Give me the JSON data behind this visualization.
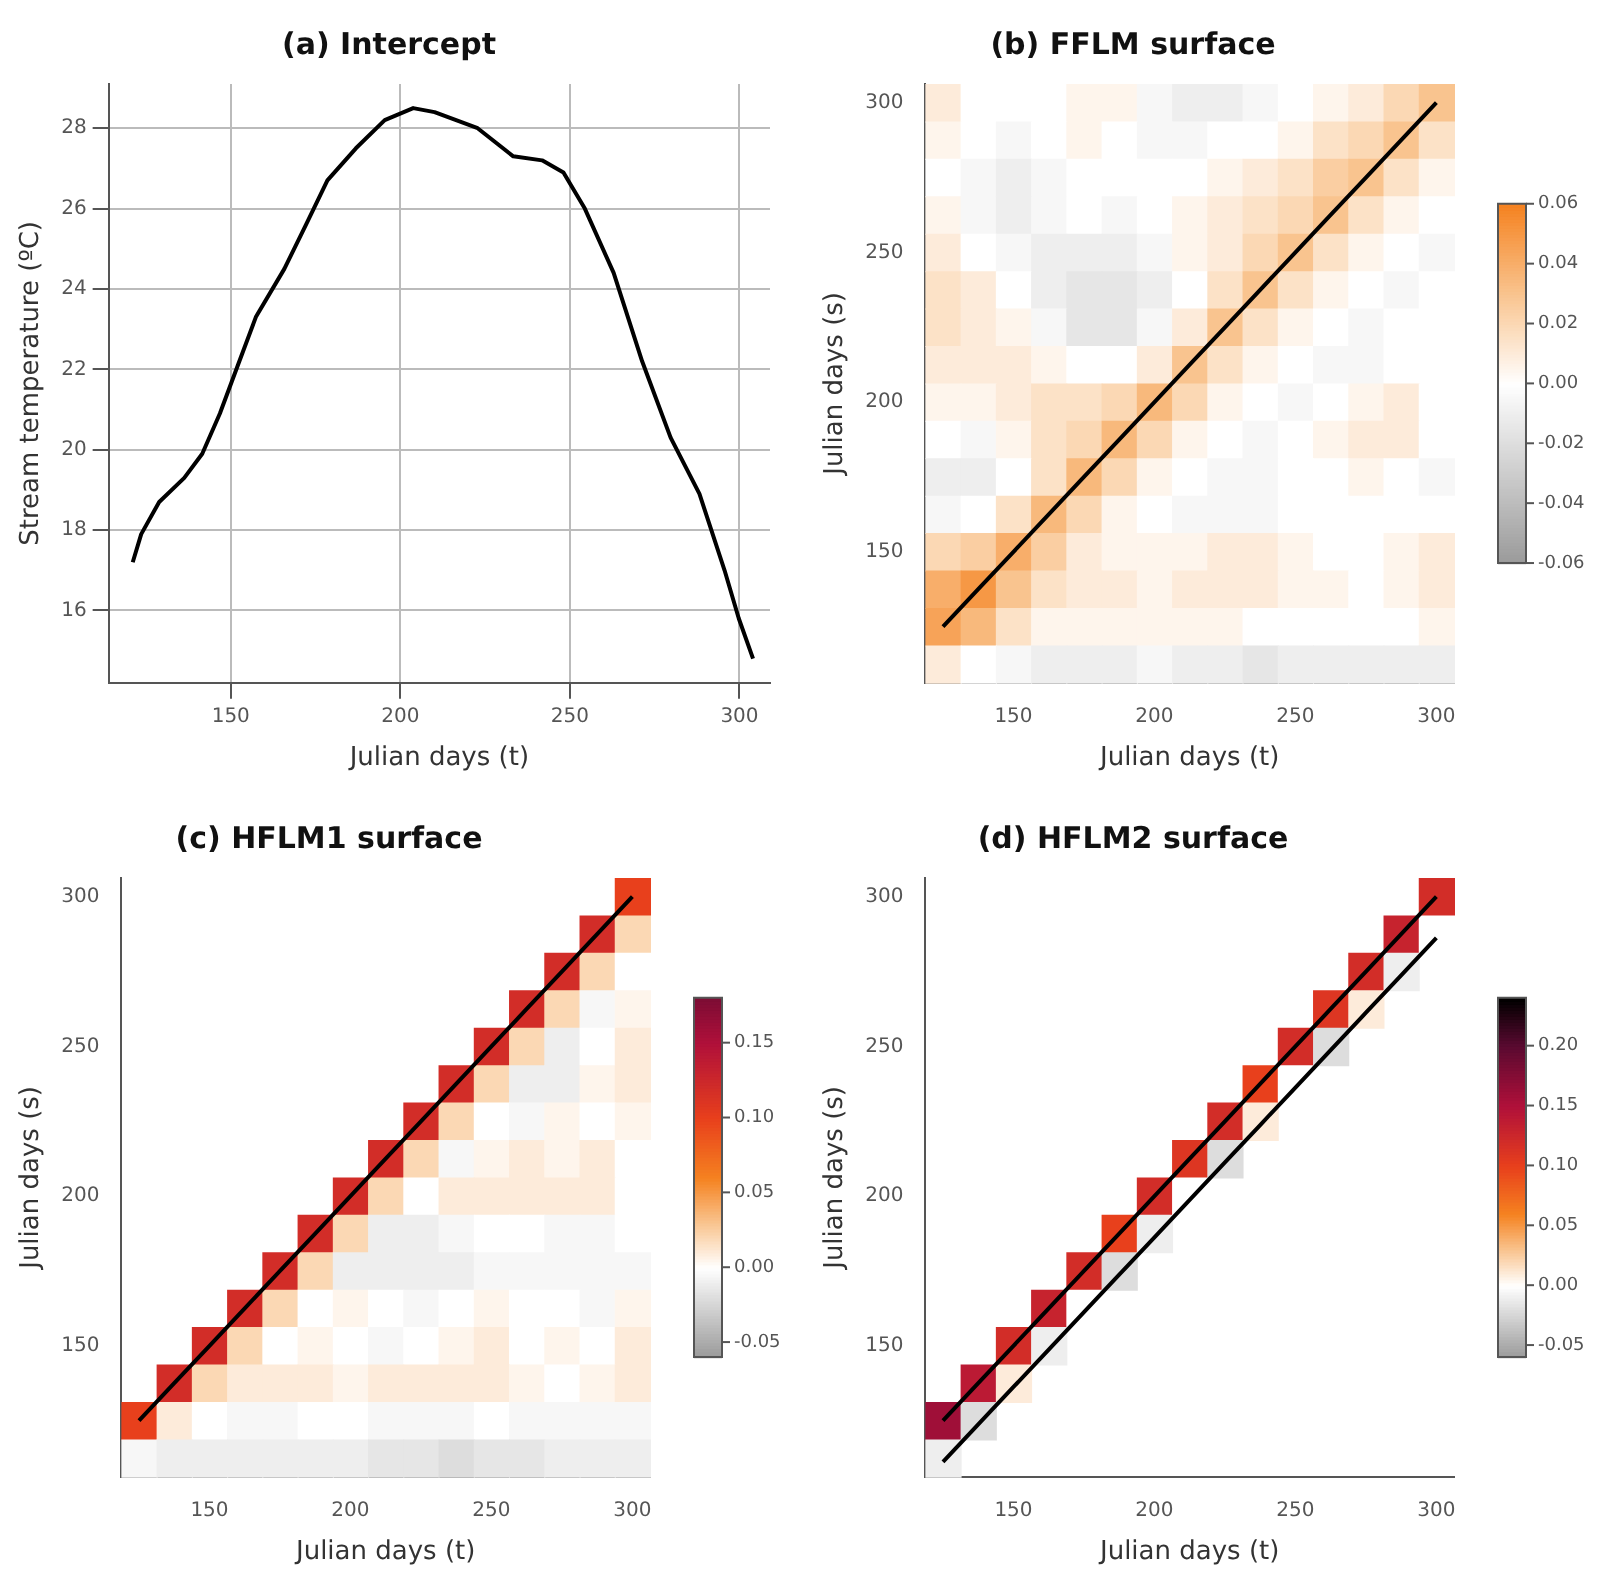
{
  "chart_data": [
    {
      "type": "line",
      "title": "(a) Intercept",
      "xlabel": "Julian days (t)",
      "ylabel": "Stream temperature (ºC)",
      "x": [
        121.1,
        123.6,
        128.9,
        136.3,
        141.6,
        146.8,
        152.1,
        157.4,
        165.8,
        172.2,
        178.5,
        186.9,
        195.4,
        203.8,
        210.1,
        222.8,
        233.3,
        241.8,
        248.1,
        254.4,
        262.9,
        271.3,
        279.7,
        288.2,
        295.6,
        299.8,
        304.0
      ],
      "values": [
        17.2,
        17.9,
        18.7,
        19.3,
        19.9,
        20.9,
        22.1,
        23.3,
        24.5,
        25.6,
        26.7,
        27.5,
        28.2,
        28.5,
        28.4,
        28.0,
        27.3,
        27.2,
        26.9,
        26.0,
        24.4,
        22.2,
        20.3,
        18.9,
        17.0,
        15.8,
        14.8
      ],
      "color": "#000000",
      "xlim": [
        114,
        309
      ],
      "ylim": [
        14.2,
        29.1
      ],
      "xticks": [
        150,
        200,
        250,
        300
      ],
      "yticks": [
        16,
        18,
        20,
        22,
        24,
        26,
        28
      ],
      "grid": true
    },
    {
      "type": "heatmap",
      "title": "(b) FFLM surface",
      "xlabel": "Julian days (t)",
      "ylabel": "Julian days (s)",
      "categories": [
        null,
        null,
        "150",
        null,
        null,
        null,
        "200",
        null,
        null,
        null,
        "250",
        null,
        null,
        null,
        "300"
      ],
      "y_categories": [
        "300",
        null,
        null,
        null,
        "250",
        null,
        null,
        null,
        "200",
        null,
        null,
        null,
        "150",
        null,
        null,
        null
      ],
      "cells": [
        [
          0.01,
          0,
          0,
          0,
          0.005,
          0.005,
          -0.005,
          -0.01,
          -0.01,
          -0.005,
          0,
          0.005,
          0.01,
          0.02,
          0.03
        ],
        [
          0.005,
          0,
          -0.005,
          0,
          0.005,
          0,
          -0.005,
          -0.005,
          0,
          0,
          0.005,
          0.015,
          0.02,
          0.03,
          0.015
        ],
        [
          0,
          -0.005,
          -0.01,
          -0.005,
          0,
          0,
          0,
          0,
          0.005,
          0.01,
          0.015,
          0.025,
          0.03,
          0.015,
          0.005
        ],
        [
          0.005,
          -0.005,
          -0.01,
          -0.005,
          0,
          -0.005,
          0,
          0.005,
          0.01,
          0.015,
          0.02,
          0.03,
          0.015,
          0.005,
          0
        ],
        [
          0.01,
          0,
          -0.005,
          -0.01,
          -0.01,
          -0.01,
          -0.005,
          0.005,
          0.01,
          0.02,
          0.03,
          0.015,
          0.005,
          0,
          -0.005
        ],
        [
          0.015,
          0.01,
          0,
          -0.01,
          -0.015,
          -0.015,
          -0.01,
          0,
          0.015,
          0.03,
          0.015,
          0.005,
          0,
          -0.005,
          0
        ],
        [
          0.015,
          0.01,
          0.005,
          -0.005,
          -0.015,
          -0.015,
          -0.005,
          0.01,
          0.03,
          0.015,
          0.005,
          0,
          -0.005,
          0,
          0
        ],
        [
          0.01,
          0.01,
          0.01,
          0.005,
          0,
          0,
          0.01,
          0.03,
          0.015,
          0.005,
          0,
          -0.005,
          -0.005,
          0,
          0
        ],
        [
          0.005,
          0.005,
          0.01,
          0.015,
          0.015,
          0.02,
          0.035,
          0.02,
          0.005,
          0,
          -0.005,
          0,
          0.005,
          0.01,
          0
        ],
        [
          0,
          -0.005,
          0.005,
          0.015,
          0.02,
          0.035,
          0.02,
          0.005,
          0,
          -0.005,
          0,
          0.005,
          0.01,
          0.01,
          0
        ],
        [
          -0.01,
          -0.01,
          0,
          0.015,
          0.035,
          0.02,
          0.005,
          0,
          -0.005,
          -0.005,
          0,
          0,
          0.005,
          0,
          -0.005
        ],
        [
          -0.005,
          0,
          0.015,
          0.035,
          0.02,
          0.005,
          0,
          -0.005,
          -0.005,
          -0.005,
          0,
          0,
          0,
          0,
          0
        ],
        [
          0.02,
          0.025,
          0.04,
          0.025,
          0.01,
          0.005,
          0.005,
          0.005,
          0.01,
          0.01,
          0.005,
          0,
          0,
          0.005,
          0.01
        ],
        [
          0.04,
          0.05,
          0.03,
          0.015,
          0.01,
          0.01,
          0.005,
          0.01,
          0.01,
          0.01,
          0.005,
          0.005,
          0,
          0.005,
          0.01
        ],
        [
          0.045,
          0.035,
          0.015,
          0.005,
          0.005,
          0.005,
          0.005,
          0.005,
          0.005,
          0,
          0,
          0,
          0,
          0,
          0.005
        ],
        [
          0.01,
          0,
          -0.005,
          -0.01,
          -0.01,
          -0.01,
          -0.005,
          -0.01,
          -0.01,
          -0.015,
          -0.01,
          -0.01,
          -0.01,
          -0.01,
          -0.01
        ]
      ],
      "clim": [
        -0.06,
        0.06
      ],
      "cticks": [
        {
          "value": -0.06,
          "label": "-0.06"
        },
        {
          "value": -0.04,
          "label": "-0.04"
        },
        {
          "value": -0.02,
          "label": "-0.02"
        },
        {
          "value": 0,
          "label": "0.00"
        },
        {
          "value": 0.02,
          "label": "0.02"
        },
        {
          "value": 0.04,
          "label": "0.04"
        },
        {
          "value": 0.06,
          "label": "0.06"
        }
      ],
      "series": [
        {
          "type": "line",
          "color": "#000000",
          "values": [
            14,
            13,
            12,
            11,
            10,
            9,
            8,
            7,
            6,
            5,
            4,
            3,
            2,
            1,
            0
          ]
        }
      ]
    },
    {
      "type": "heatmap",
      "title": "(c) HFLM1 surface",
      "xlabel": "Julian days (t)",
      "ylabel": "Julian days (s)",
      "categories": [
        null,
        null,
        "150",
        null,
        null,
        null,
        "200",
        null,
        null,
        null,
        "250",
        null,
        null,
        null,
        "300"
      ],
      "y_categories": [
        "300",
        null,
        null,
        null,
        "250",
        null,
        null,
        null,
        "200",
        null,
        null,
        null,
        "150",
        null,
        null,
        null
      ],
      "cells": [
        [
          null,
          null,
          null,
          null,
          null,
          null,
          null,
          null,
          null,
          null,
          null,
          null,
          null,
          null,
          0.1
        ],
        [
          null,
          null,
          null,
          null,
          null,
          null,
          null,
          null,
          null,
          null,
          null,
          null,
          null,
          0.12,
          0.02
        ],
        [
          null,
          null,
          null,
          null,
          null,
          null,
          null,
          null,
          null,
          null,
          null,
          null,
          0.12,
          0.02,
          0
        ],
        [
          null,
          null,
          null,
          null,
          null,
          null,
          null,
          null,
          null,
          null,
          null,
          0.12,
          0.02,
          -0.005,
          0.005
        ],
        [
          null,
          null,
          null,
          null,
          null,
          null,
          null,
          null,
          null,
          null,
          0.12,
          0.02,
          -0.01,
          0,
          0.01
        ],
        [
          null,
          null,
          null,
          null,
          null,
          null,
          null,
          null,
          null,
          0.12,
          0.02,
          -0.01,
          -0.01,
          0.005,
          0.01
        ],
        [
          null,
          null,
          null,
          null,
          null,
          null,
          null,
          null,
          0.12,
          0.02,
          0,
          -0.005,
          0.005,
          0,
          0.005
        ],
        [
          null,
          null,
          null,
          null,
          null,
          null,
          null,
          0.12,
          0.02,
          -0.005,
          0.005,
          0.01,
          0.005,
          0.01,
          0
        ],
        [
          null,
          null,
          null,
          null,
          null,
          null,
          0.12,
          0.02,
          0,
          0.01,
          0.01,
          0.01,
          0.01,
          0.01,
          0
        ],
        [
          null,
          null,
          null,
          null,
          null,
          0.12,
          0.02,
          -0.01,
          -0.01,
          -0.005,
          0,
          0,
          -0.005,
          -0.005,
          0
        ],
        [
          null,
          null,
          null,
          null,
          0.12,
          0.02,
          -0.01,
          -0.01,
          -0.01,
          -0.01,
          -0.005,
          -0.005,
          -0.005,
          -0.005,
          -0.005
        ],
        [
          null,
          null,
          null,
          0.12,
          0.02,
          0,
          0.005,
          0,
          -0.005,
          0,
          0.005,
          0,
          0,
          -0.005,
          0.005
        ],
        [
          null,
          null,
          0.12,
          0.02,
          0,
          0.005,
          0,
          -0.005,
          0,
          0.005,
          0.01,
          0,
          0.005,
          0,
          0.01
        ],
        [
          null,
          0.12,
          0.02,
          0.01,
          0.01,
          0.01,
          0.005,
          0.01,
          0.01,
          0.01,
          0.01,
          0.005,
          0,
          0.005,
          0.01
        ],
        [
          0.1,
          0.01,
          0,
          -0.005,
          -0.005,
          0,
          0,
          -0.005,
          -0.005,
          -0.005,
          0,
          -0.005,
          -0.005,
          -0.005,
          -0.005
        ],
        [
          -0.005,
          -0.01,
          -0.01,
          -0.01,
          -0.01,
          -0.01,
          -0.01,
          -0.015,
          -0.015,
          -0.02,
          -0.015,
          -0.015,
          -0.01,
          -0.01,
          -0.01
        ]
      ],
      "clim": [
        -0.06,
        0.18
      ],
      "cticks": [
        {
          "value": -0.05,
          "label": "-0.05"
        },
        {
          "value": 0,
          "label": "0.00"
        },
        {
          "value": 0.05,
          "label": "0.05"
        },
        {
          "value": 0.1,
          "label": "0.10"
        },
        {
          "value": 0.15,
          "label": "0.15"
        }
      ],
      "series": [
        {
          "type": "line",
          "color": "#000000",
          "values": [
            14,
            13,
            12,
            11,
            10,
            9,
            8,
            7,
            6,
            5,
            4,
            3,
            2,
            1,
            0
          ]
        }
      ]
    },
    {
      "type": "heatmap",
      "title": "(d) HFLM2 surface",
      "xlabel": "Julian days (t)",
      "ylabel": "Julian days (s)",
      "categories": [
        null,
        null,
        "150",
        null,
        null,
        null,
        "200",
        null,
        null,
        null,
        "250",
        null,
        null,
        null,
        "300"
      ],
      "y_categories": [
        "300",
        null,
        null,
        null,
        "250",
        null,
        null,
        null,
        "200",
        null,
        null,
        null,
        "150",
        null,
        null,
        null
      ],
      "cells": [
        [
          null,
          null,
          null,
          null,
          null,
          null,
          null,
          null,
          null,
          null,
          null,
          null,
          null,
          null,
          0.12
        ],
        [
          null,
          null,
          null,
          null,
          null,
          null,
          null,
          null,
          null,
          null,
          null,
          null,
          null,
          0.13,
          0
        ],
        [
          null,
          null,
          null,
          null,
          null,
          null,
          null,
          null,
          null,
          null,
          null,
          null,
          0.12,
          -0.01,
          null
        ],
        [
          null,
          null,
          null,
          null,
          null,
          null,
          null,
          null,
          null,
          null,
          null,
          0.11,
          0.01,
          null,
          null
        ],
        [
          null,
          null,
          null,
          null,
          null,
          null,
          null,
          null,
          null,
          null,
          0.12,
          -0.02,
          null,
          null,
          null
        ],
        [
          null,
          null,
          null,
          null,
          null,
          null,
          null,
          null,
          null,
          0.1,
          0,
          null,
          null,
          null,
          null
        ],
        [
          null,
          null,
          null,
          null,
          null,
          null,
          null,
          null,
          0.12,
          0.01,
          null,
          null,
          null,
          null,
          null
        ],
        [
          null,
          null,
          null,
          null,
          null,
          null,
          null,
          0.11,
          -0.02,
          null,
          null,
          null,
          null,
          null,
          null
        ],
        [
          null,
          null,
          null,
          null,
          null,
          null,
          0.12,
          0,
          null,
          null,
          null,
          null,
          null,
          null,
          null
        ],
        [
          null,
          null,
          null,
          null,
          null,
          0.1,
          -0.01,
          null,
          null,
          null,
          null,
          null,
          null,
          null,
          null
        ],
        [
          null,
          null,
          null,
          null,
          0.12,
          -0.02,
          null,
          null,
          null,
          null,
          null,
          null,
          null,
          null,
          null
        ],
        [
          null,
          null,
          null,
          0.13,
          0,
          null,
          null,
          null,
          null,
          null,
          null,
          null,
          null,
          null,
          null
        ],
        [
          null,
          null,
          0.12,
          -0.01,
          null,
          null,
          null,
          null,
          null,
          null,
          null,
          null,
          null,
          null,
          null
        ],
        [
          null,
          0.14,
          0.01,
          null,
          null,
          null,
          null,
          null,
          null,
          null,
          null,
          null,
          null,
          null,
          null
        ],
        [
          0.16,
          -0.02,
          null,
          null,
          null,
          null,
          null,
          null,
          null,
          null,
          null,
          null,
          null,
          null,
          null
        ],
        [
          -0.01,
          null,
          null,
          null,
          null,
          null,
          null,
          null,
          null,
          null,
          null,
          null,
          null,
          null,
          null
        ]
      ],
      "clim": [
        -0.06,
        0.24
      ],
      "cticks": [
        {
          "value": -0.05,
          "label": "-0.05"
        },
        {
          "value": 0,
          "label": "0.00"
        },
        {
          "value": 0.05,
          "label": "0.05"
        },
        {
          "value": 0.1,
          "label": "0.10"
        },
        {
          "value": 0.15,
          "label": "0.15"
        },
        {
          "value": 0.2,
          "label": "0.20"
        }
      ],
      "series": [
        {
          "type": "line",
          "color": "#000000",
          "values": [
            14,
            13,
            12,
            11,
            10,
            9,
            8,
            7,
            6,
            5,
            4,
            3,
            2,
            1,
            0
          ]
        },
        {
          "type": "line",
          "color": "#000000",
          "values": [
            15.1,
            14.1,
            13.1,
            12.1,
            11.1,
            10.1,
            9.1,
            8.1,
            7.1,
            6.1,
            5.1,
            4.1,
            3.1,
            2.1,
            1.1
          ]
        }
      ]
    }
  ]
}
